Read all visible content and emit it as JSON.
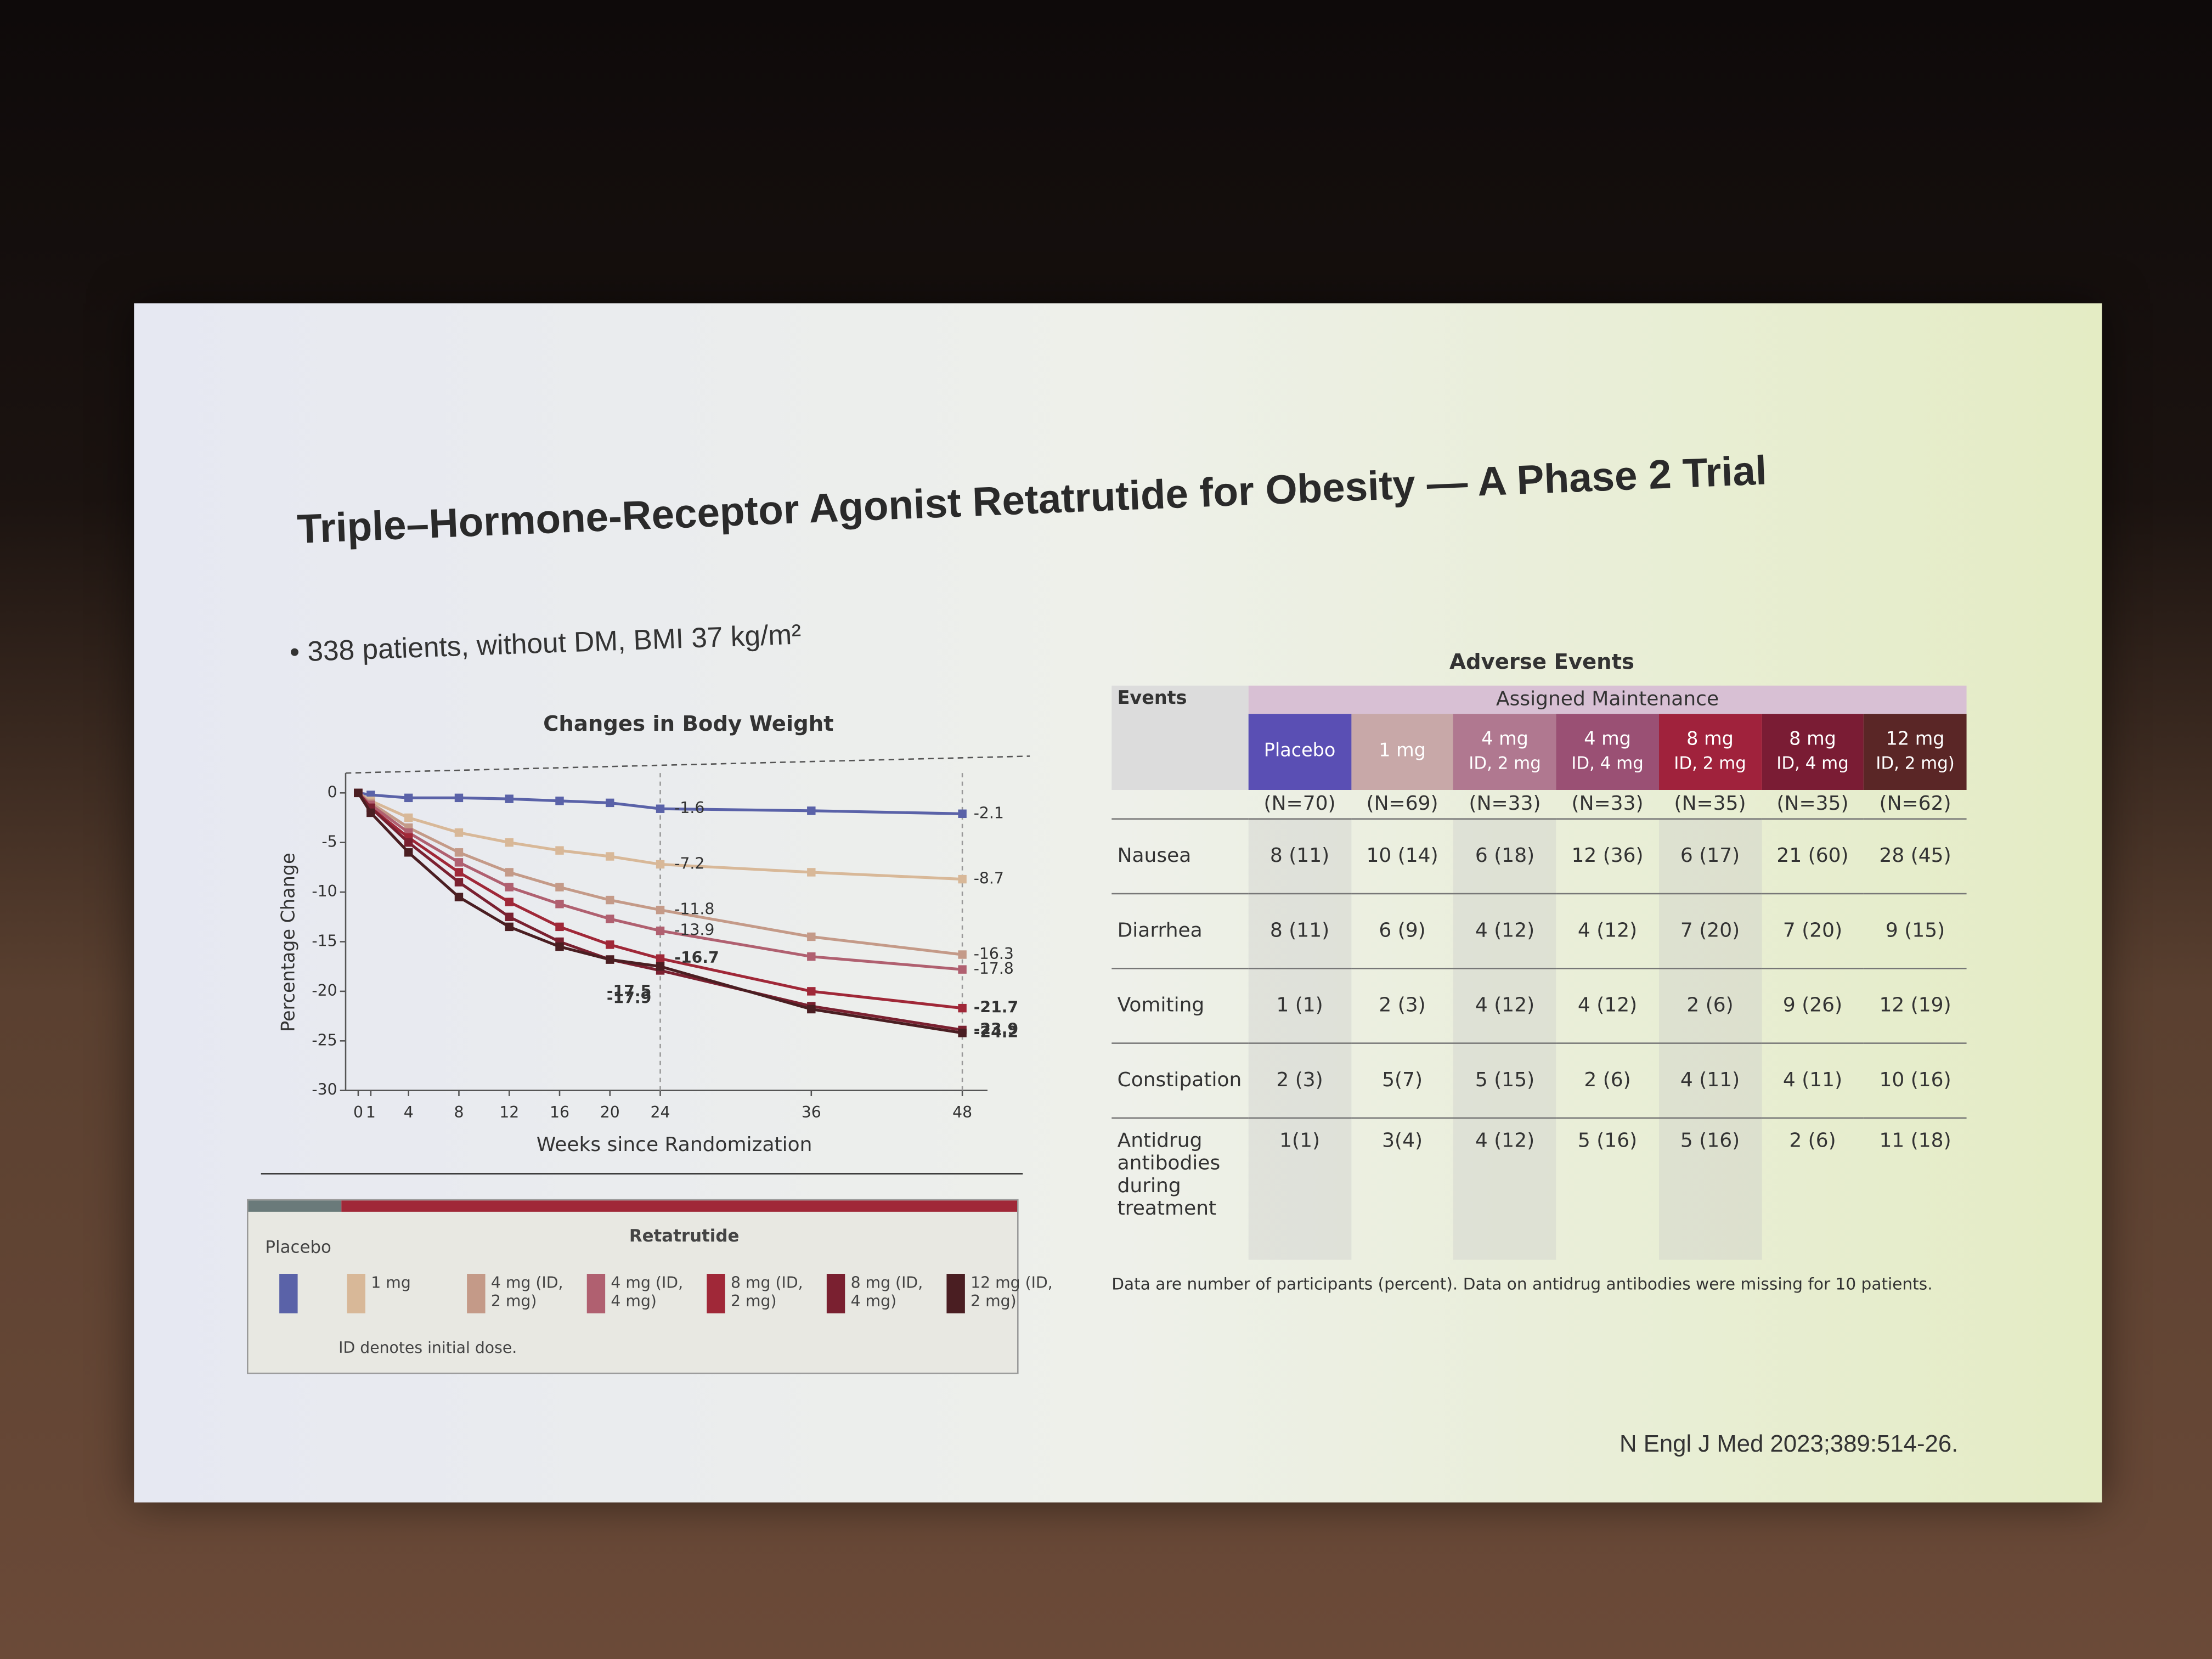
{
  "slide": {
    "title": "Triple–Hormone-Receptor Agonist Retatrutide for Obesity — A Phase 2 Trial",
    "bullet": "338 patients, without DM, BMI 37 kg/m²",
    "citation": "N Engl J Med 2023;389:514-26."
  },
  "chart_data": {
    "type": "line",
    "title": "Changes in Body Weight",
    "x_label": "Weeks since Randomization",
    "y_label": "Percentage Change",
    "x": [
      0,
      1,
      4,
      8,
      12,
      16,
      20,
      24,
      36,
      48
    ],
    "series": [
      {
        "name": "Placebo",
        "color": "#5a62a8",
        "values": [
          0,
          -0.2,
          -0.5,
          -0.5,
          -0.6,
          -0.8,
          -1.0,
          -1.6,
          -1.8,
          -2.1
        ]
      },
      {
        "name": "1 mg",
        "color": "#d8b898",
        "values": [
          0,
          -0.8,
          -2.5,
          -4.0,
          -5.0,
          -5.8,
          -6.4,
          -7.2,
          -8.0,
          -8.7
        ]
      },
      {
        "name": "4 mg (ID, 2 mg)",
        "color": "#c49a88",
        "values": [
          0,
          -1.0,
          -3.5,
          -6.0,
          -8.0,
          -9.5,
          -10.8,
          -11.8,
          -14.5,
          -16.3
        ]
      },
      {
        "name": "4 mg (ID, 4 mg)",
        "color": "#b06070",
        "values": [
          0,
          -1.2,
          -4.0,
          -7.0,
          -9.5,
          -11.2,
          -12.7,
          -13.9,
          -16.5,
          -17.8
        ]
      },
      {
        "name": "8 mg (ID, 2 mg)",
        "color": "#a02838",
        "values": [
          0,
          -1.5,
          -4.5,
          -8.0,
          -11.0,
          -13.5,
          -15.3,
          -16.7,
          -20.0,
          -21.7
        ]
      },
      {
        "name": "8 mg (ID, 4 mg)",
        "color": "#7a2030",
        "values": [
          0,
          -1.5,
          -5.0,
          -9.0,
          -12.5,
          -15.0,
          -16.8,
          -17.9,
          -21.5,
          -23.9
        ]
      },
      {
        "name": "12 mg (ID, 2 mg)",
        "color": "#4a1e22",
        "values": [
          0,
          -2.0,
          -6.0,
          -10.5,
          -13.5,
          -15.5,
          -16.8,
          -17.5,
          -21.8,
          -24.2
        ]
      }
    ],
    "xlim": [
      -1,
      50
    ],
    "xticks": [
      0,
      1,
      4,
      8,
      12,
      16,
      20,
      24,
      36,
      48
    ],
    "ylim": [
      -30,
      2
    ],
    "yticks": [
      0,
      -5,
      -10,
      -15,
      -20,
      -25,
      -30
    ],
    "legend": {
      "placebo_header": "Placebo",
      "drug_header": "Retatrutide",
      "note": "ID denotes initial dose."
    }
  },
  "table": {
    "title": "Adverse Events",
    "corner": "Events",
    "group": "Assigned Maintenance",
    "columns": [
      {
        "name": [
          "Placebo"
        ],
        "n": "(N=70)",
        "color": "#5a4fb4"
      },
      {
        "name": [
          "1 mg"
        ],
        "n": "(N=69)",
        "color": "#c8a8a8"
      },
      {
        "name": [
          "4 mg",
          "ID, 2 mg"
        ],
        "n": "(N=33)",
        "color": "#b07890"
      },
      {
        "name": [
          "4 mg",
          "ID, 4 mg"
        ],
        "n": "(N=33)",
        "color": "#9a5074"
      },
      {
        "name": [
          "8 mg",
          "ID, 2 mg"
        ],
        "n": "(N=35)",
        "color": "#a0223c"
      },
      {
        "name": [
          "8 mg",
          "ID, 4 mg"
        ],
        "n": "(N=35)",
        "color": "#7a1c34"
      },
      {
        "name": [
          "12 mg",
          "ID, 2 mg)"
        ],
        "n": "(N=62)",
        "color": "#5a2626"
      }
    ],
    "rows": [
      [
        "Nausea",
        "8 (11)",
        "10 (14)",
        "6 (18)",
        "12 (36)",
        "6 (17)",
        "21 (60)",
        "28 (45)"
      ],
      [
        "Diarrhea",
        "8 (11)",
        "6 (9)",
        "4 (12)",
        "4 (12)",
        "7 (20)",
        "7 (20)",
        "9 (15)"
      ],
      [
        "Vomiting",
        "1 (1)",
        "2 (3)",
        "4 (12)",
        "4 (12)",
        "2 (6)",
        "9 (26)",
        "12 (19)"
      ],
      [
        "Constipation",
        "2 (3)",
        "5(7)",
        "5 (15)",
        "2 (6)",
        "4 (11)",
        "4 (11)",
        "10 (16)"
      ],
      [
        "Antidrug antibodies during treatment",
        "1(1)",
        "3(4)",
        "4 (12)",
        "5 (16)",
        "5 (16)",
        "2 (6)",
        "11 (18)"
      ]
    ],
    "note": "Data are number of participants (percent). Data on antidrug antibodies were missing for 10 patients."
  }
}
